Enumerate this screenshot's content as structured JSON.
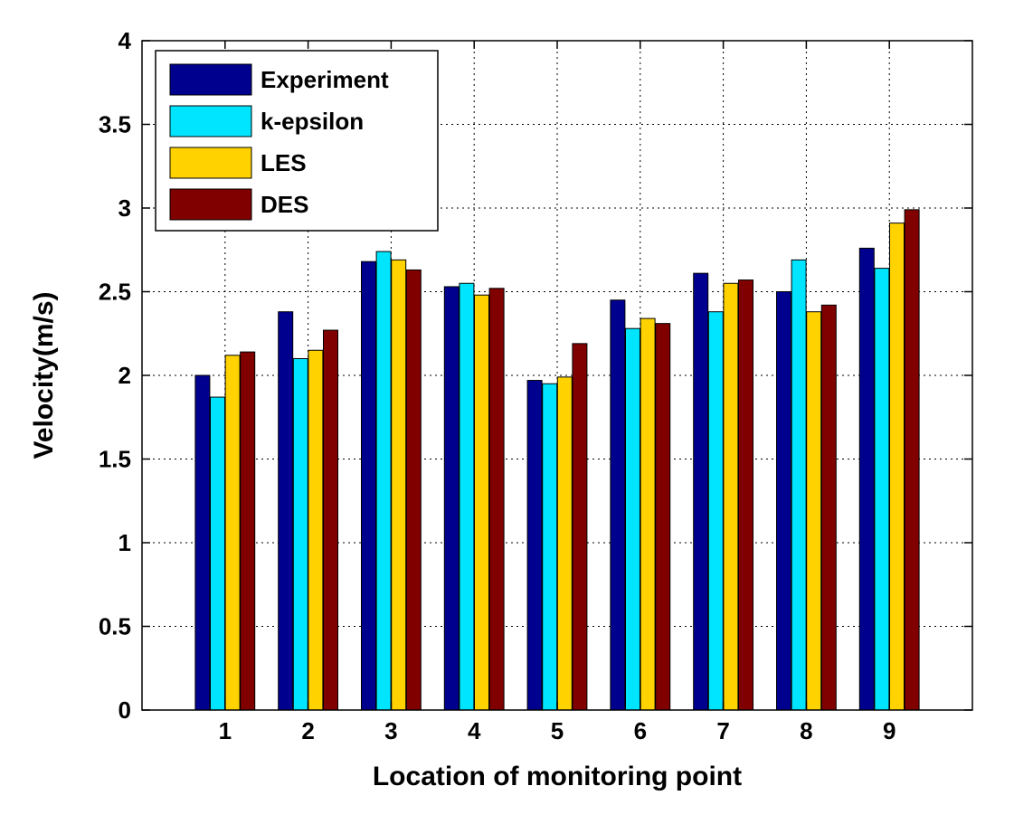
{
  "chart_data": {
    "type": "bar",
    "title": "",
    "xlabel": "Location of monitoring point",
    "ylabel": "Velocity(m/s)",
    "ylim": [
      0,
      4
    ],
    "yticks": [
      0,
      0.5,
      1,
      1.5,
      2,
      2.5,
      3,
      3.5,
      4
    ],
    "ytick_labels": [
      "0",
      "0.5",
      "1",
      "1.5",
      "2",
      "2.5",
      "3",
      "3.5",
      "4"
    ],
    "categories": [
      "1",
      "2",
      "3",
      "4",
      "5",
      "6",
      "7",
      "8",
      "9"
    ],
    "grid": true,
    "legend_position": "top-left",
    "series": [
      {
        "name": "Experiment",
        "color": "#00008F",
        "values": [
          2.0,
          2.38,
          2.68,
          2.53,
          1.97,
          2.45,
          2.61,
          2.5,
          2.76
        ]
      },
      {
        "name": "k-epsilon",
        "color": "#00E5FF",
        "values": [
          1.87,
          2.1,
          2.74,
          2.55,
          1.95,
          2.28,
          2.38,
          2.69,
          2.64
        ]
      },
      {
        "name": "LES",
        "color": "#FFD200",
        "values": [
          2.12,
          2.15,
          2.69,
          2.48,
          1.99,
          2.34,
          2.55,
          2.38,
          2.91
        ]
      },
      {
        "name": "DES",
        "color": "#800000",
        "values": [
          2.14,
          2.27,
          2.63,
          2.52,
          2.19,
          2.31,
          2.57,
          2.42,
          2.99
        ]
      }
    ]
  }
}
